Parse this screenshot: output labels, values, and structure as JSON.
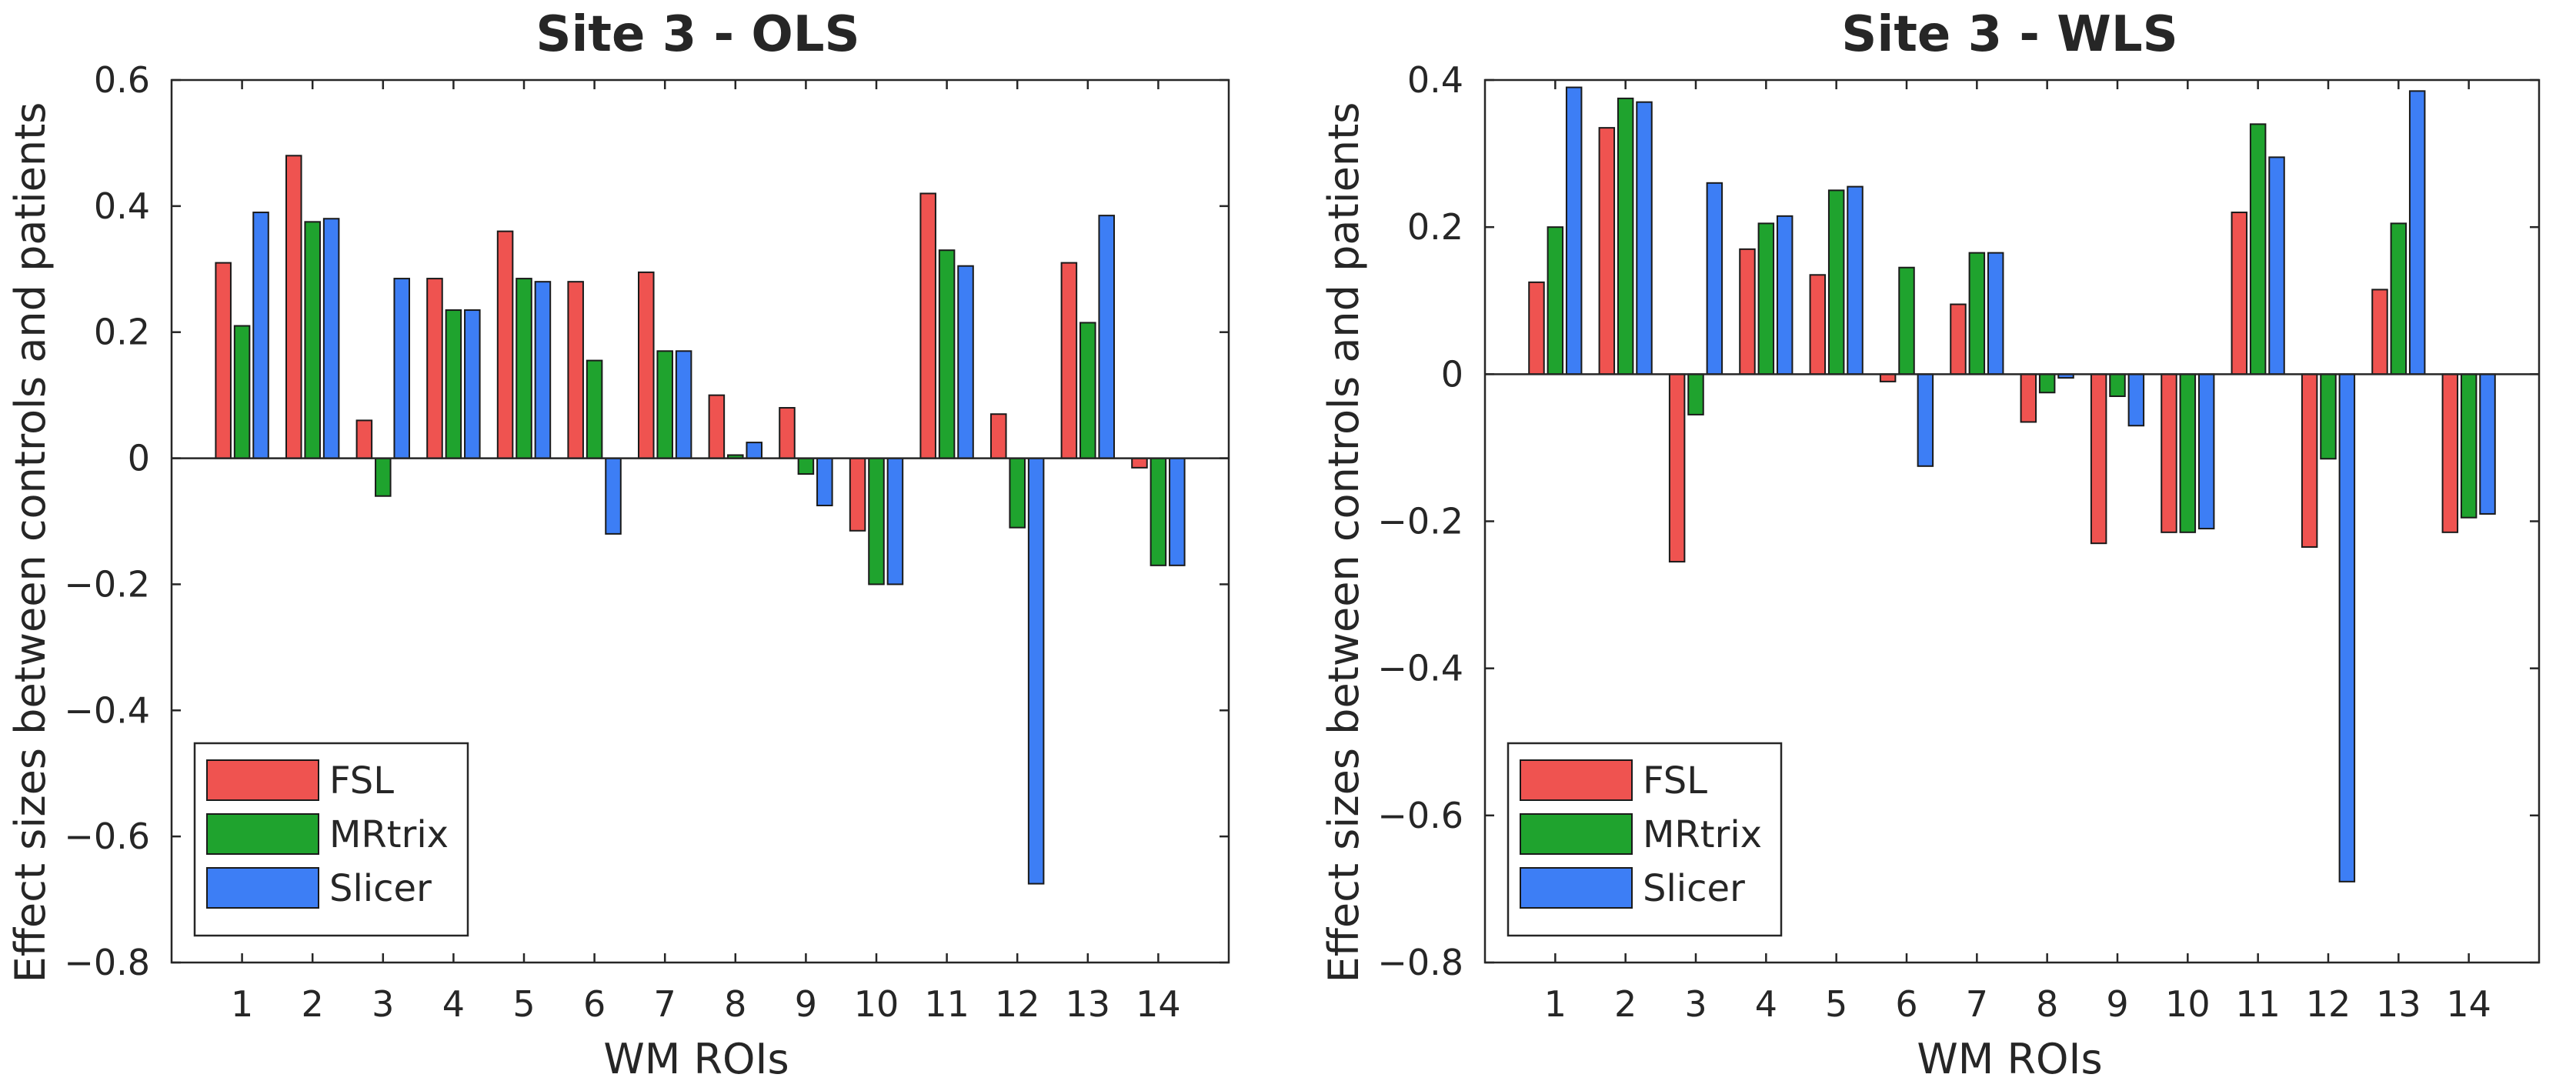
{
  "chart_data": [
    {
      "type": "bar",
      "title": "Site 3 - OLS",
      "xlabel": "WM ROIs",
      "ylabel": "Effect sizes between controls and patients",
      "ylim": [
        -0.8,
        0.6
      ],
      "yticks": [
        -0.8,
        -0.6,
        -0.4,
        -0.2,
        0,
        0.2,
        0.4,
        0.6
      ],
      "ytick_labels": [
        "−0.8",
        "−0.6",
        "−0.4",
        "−0.2",
        "0",
        "0.2",
        "0.4",
        "0.6"
      ],
      "categories": [
        "1",
        "2",
        "3",
        "4",
        "5",
        "6",
        "7",
        "8",
        "9",
        "10",
        "11",
        "12",
        "13",
        "14"
      ],
      "legend_position": "bottom-left",
      "series": [
        {
          "name": "FSL",
          "color": "#ef5350",
          "values": [
            0.31,
            0.48,
            0.06,
            0.285,
            0.36,
            0.28,
            0.295,
            0.1,
            0.08,
            -0.115,
            0.42,
            0.07,
            0.31,
            -0.015
          ]
        },
        {
          "name": "MRtrix",
          "color": "#1fa32e",
          "values": [
            0.21,
            0.375,
            -0.06,
            0.235,
            0.285,
            0.155,
            0.17,
            0.005,
            -0.025,
            -0.2,
            0.33,
            -0.11,
            0.215,
            -0.17
          ]
        },
        {
          "name": "Slicer",
          "color": "#3d7ef5",
          "values": [
            0.39,
            0.38,
            0.285,
            0.235,
            0.28,
            -0.12,
            0.17,
            0.025,
            -0.075,
            -0.2,
            0.305,
            -0.675,
            0.385,
            -0.17
          ]
        }
      ]
    },
    {
      "type": "bar",
      "title": "Site 3 - WLS",
      "xlabel": "WM ROIs",
      "ylabel": "Effect sizes between controls and patients",
      "ylim": [
        -0.8,
        0.4
      ],
      "yticks": [
        -0.8,
        -0.6,
        -0.4,
        -0.2,
        0,
        0.2,
        0.4
      ],
      "ytick_labels": [
        "−0.8",
        "−0.6",
        "−0.4",
        "−0.2",
        "0",
        "0.2",
        "0.4"
      ],
      "categories": [
        "1",
        "2",
        "3",
        "4",
        "5",
        "6",
        "7",
        "8",
        "9",
        "10",
        "11",
        "12",
        "13",
        "14"
      ],
      "legend_position": "bottom-left",
      "series": [
        {
          "name": "FSL",
          "color": "#ef5350",
          "values": [
            0.125,
            0.335,
            -0.255,
            0.17,
            0.135,
            -0.01,
            0.095,
            -0.065,
            -0.23,
            -0.215,
            0.22,
            -0.235,
            0.115,
            -0.215
          ]
        },
        {
          "name": "MRtrix",
          "color": "#1fa32e",
          "values": [
            0.2,
            0.375,
            -0.055,
            0.205,
            0.25,
            0.145,
            0.165,
            -0.025,
            -0.03,
            -0.215,
            0.34,
            -0.115,
            0.205,
            -0.195
          ]
        },
        {
          "name": "Slicer",
          "color": "#3d7ef5",
          "values": [
            0.39,
            0.37,
            0.26,
            0.215,
            0.255,
            -0.125,
            0.165,
            -0.005,
            -0.07,
            -0.21,
            0.295,
            -0.69,
            0.385,
            -0.19
          ]
        }
      ]
    }
  ]
}
